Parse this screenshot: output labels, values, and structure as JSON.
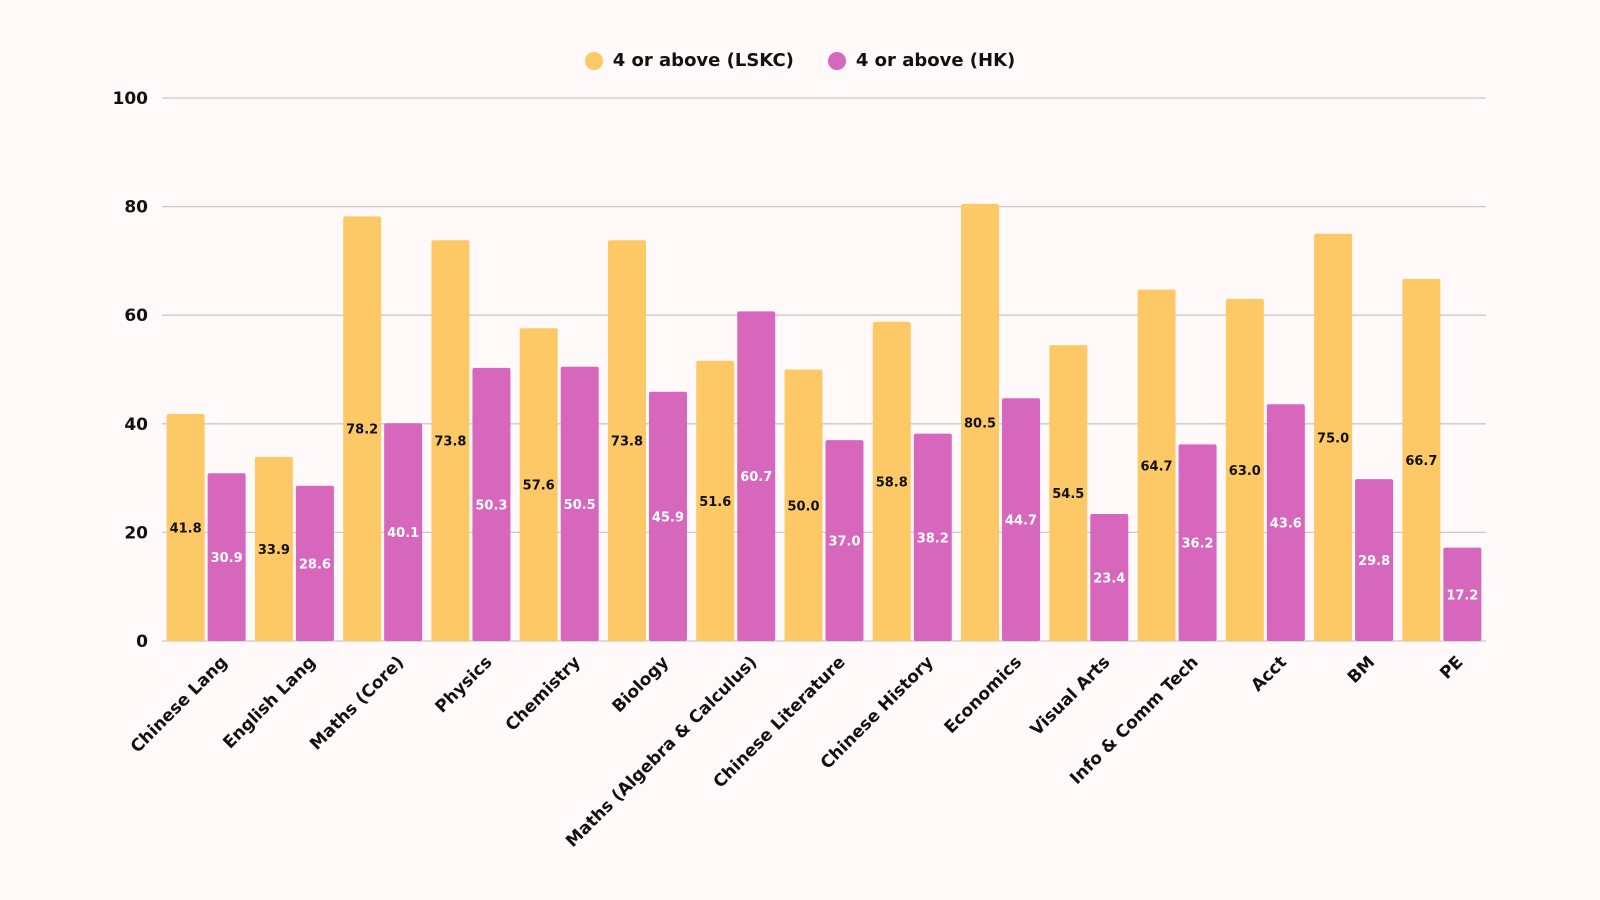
{
  "chart_data": {
    "type": "bar",
    "categories": [
      "Chinese Lang",
      "English Lang",
      "Maths (Core)",
      "Physics",
      "Chemistry",
      "Biology",
      "Maths (Algebra & Calculus)",
      "Chinese Literature",
      "Chinese History",
      "Economics",
      "Visual Arts",
      "Info & Comm Tech",
      "Acct",
      "BM",
      "PE"
    ],
    "series": [
      {
        "name": "4 or above (LSKC)",
        "color": "#fdc966",
        "label_color": "#111111",
        "values": [
          41.8,
          33.9,
          78.2,
          73.8,
          57.6,
          73.8,
          51.6,
          50.0,
          58.8,
          80.5,
          54.5,
          64.7,
          63.0,
          75.0,
          66.7
        ]
      },
      {
        "name": "4 or above (HK)",
        "color": "#d667bd",
        "label_color": "#ffffff",
        "values": [
          30.9,
          28.6,
          40.1,
          50.3,
          50.5,
          45.9,
          60.7,
          37.0,
          38.2,
          44.7,
          23.4,
          36.2,
          43.6,
          29.8,
          17.2
        ]
      }
    ],
    "ylim": [
      0,
      100
    ],
    "yticks": [
      0,
      20,
      40,
      60,
      80,
      100
    ],
    "grid": true,
    "legend_position": "top-center",
    "title": "",
    "xlabel": "",
    "ylabel": ""
  }
}
